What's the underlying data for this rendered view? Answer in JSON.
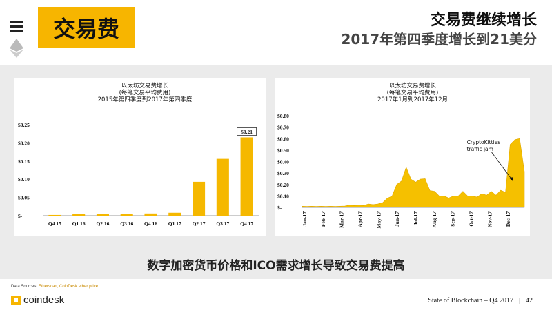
{
  "header": {
    "badge": "交易费",
    "title": "交易费继续增长",
    "subtitle": "2017年第四季度增长到21美分"
  },
  "caption": "数字加密货币价格和ICO需求增长导致交易费提高",
  "footer": {
    "sources_label": "Data Sources:",
    "sources_value": "Etherscan, CoinDesk ether price",
    "logo_text": "coindesk",
    "report_title": "State of Blockchain – Q4 2017",
    "page_number": "42"
  },
  "colors": {
    "accent": "#f7b500",
    "bar": "#f5b800",
    "area": "#f5c000"
  },
  "chart_data": [
    {
      "type": "bar",
      "title": [
        "以太坊交易费增长",
        "(每笔交易平均费用)",
        "2015年第四季度到2017年第四季度"
      ],
      "categories": [
        "Q4 15",
        "Q1 16",
        "Q2 16",
        "Q3 16",
        "Q4 16",
        "Q1 17",
        "Q2 17",
        "Q3 17",
        "Q4 17"
      ],
      "values": [
        0.002,
        0.004,
        0.004,
        0.005,
        0.006,
        0.008,
        0.093,
        0.156,
        0.215
      ],
      "ylim": [
        0,
        0.25
      ],
      "yticks": [
        0,
        0.05,
        0.1,
        0.15,
        0.2,
        0.25
      ],
      "ytick_labels": [
        "$-",
        "$0.05",
        "$0.10",
        "$0.15",
        "$0.20",
        "$0.25"
      ],
      "annotation": {
        "category": "Q4 17",
        "text": "$0.21"
      },
      "grid": false
    },
    {
      "type": "area",
      "title": [
        "以太坊交易费增长",
        "(每笔交易平均费用)",
        "2017年1月到2017年12月"
      ],
      "x_labels": [
        "Jan-17",
        "Feb-17",
        "Mar-17",
        "Apr-17",
        "May-17",
        "Jun-17",
        "Jul-17",
        "Aug-17",
        "Sep-17",
        "Oct-17",
        "Nov-17",
        "Dec-17"
      ],
      "monthly_levels": [
        [
          0.01,
          0.01,
          0.01,
          0.01
        ],
        [
          0.01,
          0.01,
          0.01,
          0.01
        ],
        [
          0.01,
          0.015,
          0.02,
          0.02
        ],
        [
          0.02,
          0.02,
          0.03,
          0.03
        ],
        [
          0.03,
          0.05,
          0.08,
          0.12
        ],
        [
          0.2,
          0.28,
          0.35,
          0.3
        ],
        [
          0.22,
          0.3,
          0.25,
          0.18
        ],
        [
          0.14,
          0.12,
          0.1,
          0.1
        ],
        [
          0.1,
          0.12,
          0.14,
          0.12
        ],
        [
          0.1,
          0.11,
          0.12,
          0.13
        ],
        [
          0.14,
          0.13,
          0.15,
          0.16
        ],
        [
          0.55,
          0.72,
          0.6,
          0.38
        ]
      ],
      "ylim": [
        0,
        0.8
      ],
      "yticks": [
        0,
        0.1,
        0.2,
        0.3,
        0.4,
        0.5,
        0.6,
        0.7,
        0.8
      ],
      "ytick_labels": [
        "$-",
        "$0.10",
        "$0.20",
        "$0.30",
        "$0.40",
        "$0.50",
        "$0.60",
        "$0.70",
        "$0.80"
      ],
      "annotation": {
        "text": [
          "CryptoKitties",
          "traffic jam"
        ],
        "x_label": "Dec-17"
      },
      "grid": false
    }
  ]
}
